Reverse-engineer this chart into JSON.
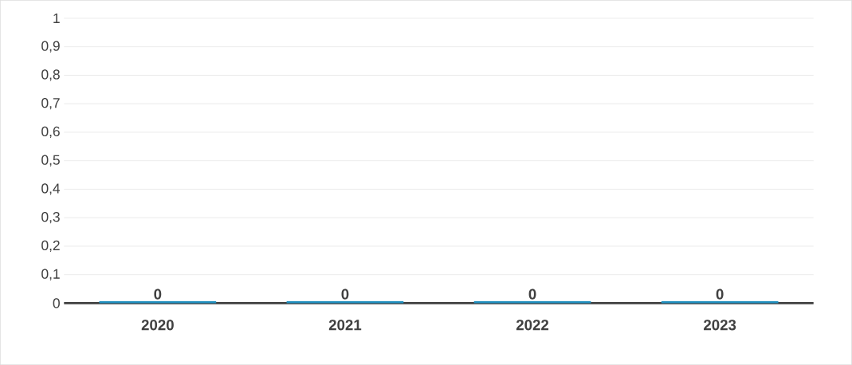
{
  "chart_data": {
    "type": "bar",
    "categories": [
      "2020",
      "2021",
      "2022",
      "2023"
    ],
    "values": [
      0,
      0,
      0,
      0
    ],
    "color": "#1f8fbf",
    "data_labels": true,
    "grid": "y",
    "ylim": [
      0,
      1
    ],
    "yticks": [
      {
        "value": 0,
        "label": "0"
      },
      {
        "value": 0.1,
        "label": "0,1"
      },
      {
        "value": 0.2,
        "label": "0,2"
      },
      {
        "value": 0.3,
        "label": "0,3"
      },
      {
        "value": 0.4,
        "label": "0,4"
      },
      {
        "value": 0.5,
        "label": "0,5"
      },
      {
        "value": 0.6,
        "label": "0,6"
      },
      {
        "value": 0.7,
        "label": "0,7"
      },
      {
        "value": 0.8,
        "label": "0,8"
      },
      {
        "value": 0.9,
        "label": "0,9"
      },
      {
        "value": 1,
        "label": "1"
      }
    ]
  }
}
